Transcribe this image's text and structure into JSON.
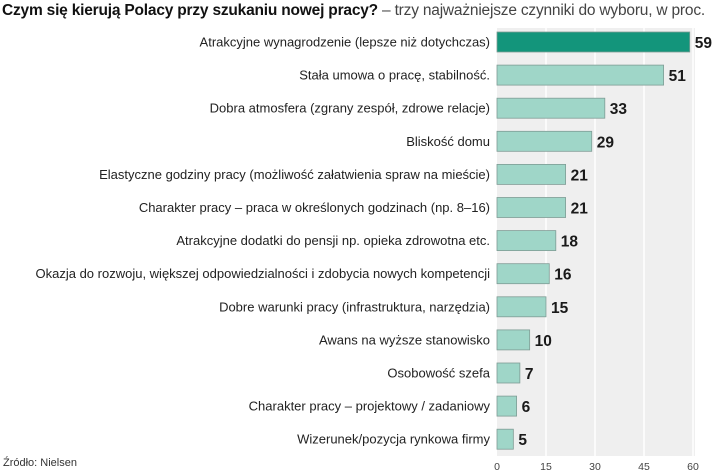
{
  "title": "Czym się kierują Polacy przy szukaniu nowej pracy?",
  "subtitle": "– trzy najważniejsze czynniki do wyboru, w proc.",
  "source": "Źródło: Nielsen",
  "colors": {
    "highlight": "#13957b",
    "bar": "#9fd6c8",
    "panel": "#efefef",
    "grid": "#ffffff"
  },
  "chart_data": {
    "type": "bar",
    "orientation": "horizontal",
    "title": "Czym się kierują Polacy przy szukaniu nowej pracy?",
    "subtitle": "– trzy najważniejsze czynniki do wyboru, w proc.",
    "categories": [
      "Atrakcyjne wynagrodzenie (lepsze niż dotychczas)",
      "Stała umowa o pracę, stabilność.",
      "Dobra atmosfera (zgrany zespół, zdrowe relacje)",
      "Bliskość domu",
      "Elastyczne godziny pracy (możliwość załatwienia spraw na mieście)",
      "Charakter pracy – praca w określonych godzinach  (np. 8–16)",
      "Atrakcyjne dodatki do pensji np. opieka zdrowotna etc.",
      "Okazja do rozwoju, większej odpowiedzialności i zdobycia nowych kompetencji",
      "Dobre warunki pracy (infrastruktura, narzędzia)",
      "Awans na wyższe stanowisko",
      "Osobowość szefa",
      "Charakter pracy – projektowy / zadaniowy",
      "Wizerunek/pozycja rynkowa firmy"
    ],
    "values": [
      59,
      51,
      33,
      29,
      21,
      21,
      18,
      16,
      15,
      10,
      7,
      6,
      5
    ],
    "xlim": [
      0,
      60
    ],
    "xticks": [
      0,
      15,
      30,
      45,
      60
    ],
    "highlight_index": 0,
    "grid": true,
    "legend": "none"
  }
}
